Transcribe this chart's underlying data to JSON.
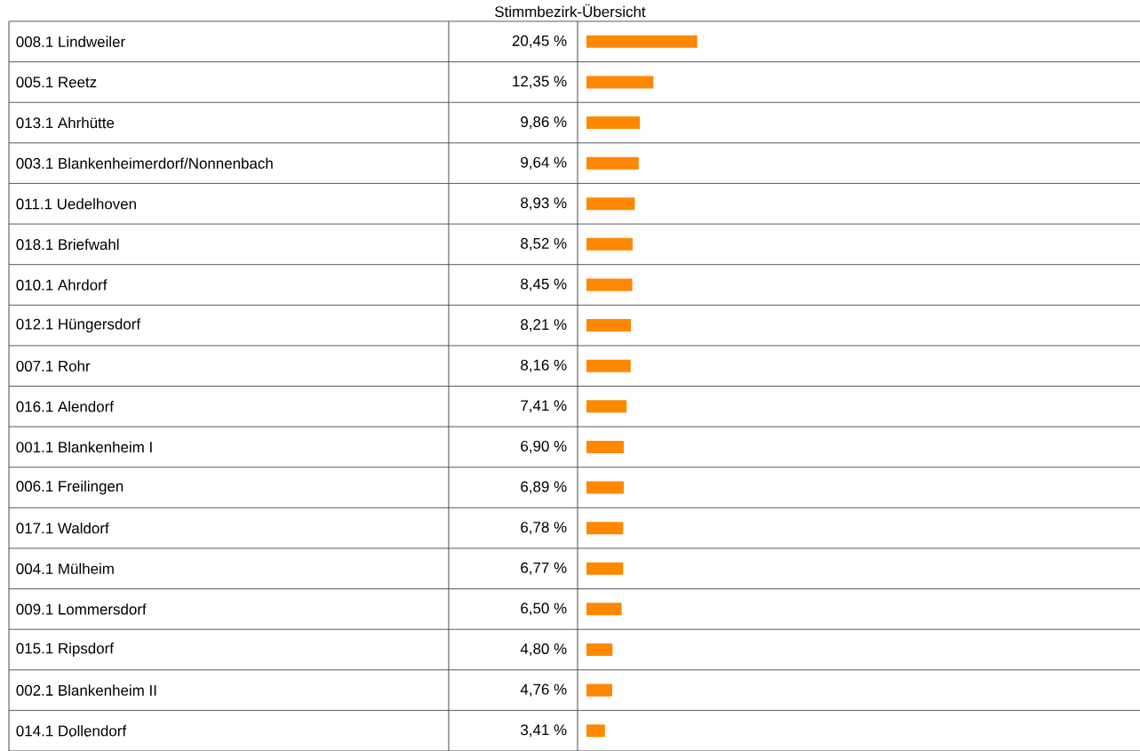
{
  "chart_data": {
    "type": "bar",
    "orientation": "horizontal",
    "title": "Stimmbezirk-Übersicht",
    "categories": [
      "008.1 Lindweiler",
      "005.1 Reetz",
      "013.1 Ahrhütte",
      "003.1 Blankenheimerdorf/Nonnenbach",
      "011.1 Uedelhoven",
      "018.1 Briefwahl",
      "010.1 Ahrdorf",
      "012.1 Hüngersdorf",
      "007.1 Rohr",
      "016.1 Alendorf",
      "001.1 Blankenheim I",
      "006.1 Freilingen",
      "017.1 Waldorf",
      "004.1 Mülheim",
      "009.1 Lommersdorf",
      "015.1 Ripsdorf",
      "002.1 Blankenheim II",
      "014.1 Dollendorf"
    ],
    "values": [
      20.45,
      12.35,
      9.86,
      9.64,
      8.93,
      8.52,
      8.45,
      8.21,
      8.16,
      7.41,
      6.9,
      6.89,
      6.78,
      6.77,
      6.5,
      4.8,
      4.76,
      3.41
    ],
    "value_labels": [
      "20,45 %",
      "12,35 %",
      "9,86 %",
      "9,64 %",
      "8,93 %",
      "8,52 %",
      "8,45 %",
      "8,21 %",
      "8,16 %",
      "7,41 %",
      "6,90 %",
      "6,89 %",
      "6,78 %",
      "6,77 %",
      "6,50 %",
      "4,80 %",
      "4,76 %",
      "3,41 %"
    ],
    "color": "#ff8800"
  }
}
